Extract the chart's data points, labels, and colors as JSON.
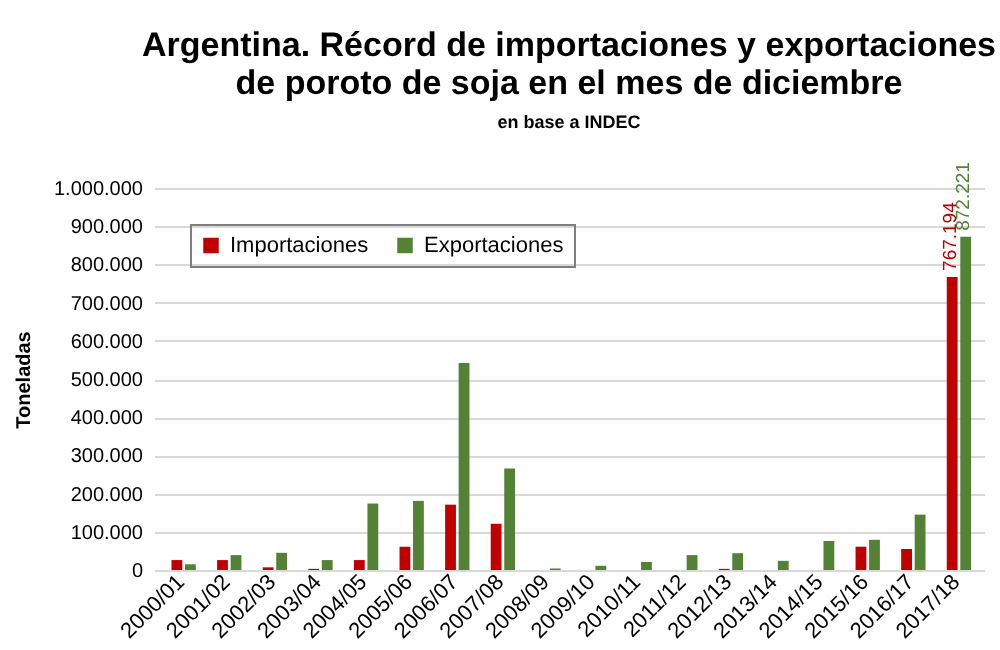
{
  "chart_data": {
    "type": "bar",
    "title": "Argentina. Récord de importaciones y exportaciones\nde poroto de soja en el mes de diciembre",
    "subtitle": "en base a INDEC",
    "ylabel": "Toneladas",
    "categories": [
      "2000/01",
      "2001/02",
      "2002/03",
      "2003/04",
      "2004/05",
      "2005/06",
      "2006/07",
      "2007/08",
      "2008/09",
      "2009/10",
      "2010/11",
      "2011/12",
      "2012/13",
      "2013/14",
      "2014/15",
      "2015/16",
      "2016/17",
      "2017/18"
    ],
    "series": [
      {
        "name": "Importaciones",
        "color": "#c00000",
        "values": [
          26000,
          26000,
          7000,
          3000,
          26000,
          61000,
          171000,
          121000,
          null,
          null,
          null,
          null,
          3000,
          null,
          null,
          61000,
          55000,
          767194
        ],
        "value_labels": [
          null,
          null,
          null,
          null,
          null,
          null,
          null,
          null,
          null,
          null,
          null,
          null,
          null,
          null,
          null,
          null,
          null,
          "767.194"
        ]
      },
      {
        "name": "Exportaciones",
        "color": "#548235",
        "values": [
          15000,
          39000,
          45000,
          26000,
          174000,
          181000,
          542000,
          266000,
          4000,
          11000,
          21000,
          39000,
          44000,
          24000,
          76000,
          79000,
          145000,
          872221
        ],
        "value_labels": [
          null,
          null,
          null,
          null,
          null,
          null,
          null,
          null,
          null,
          null,
          null,
          null,
          null,
          null,
          null,
          null,
          null,
          "872.221"
        ]
      }
    ],
    "ylim": [
      0,
      1000000
    ],
    "yticks": [
      {
        "value": 0,
        "label": "0"
      },
      {
        "value": 100000,
        "label": "100.000"
      },
      {
        "value": 200000,
        "label": "200.000"
      },
      {
        "value": 300000,
        "label": "300.000"
      },
      {
        "value": 400000,
        "label": "400.000"
      },
      {
        "value": 500000,
        "label": "500.000"
      },
      {
        "value": 600000,
        "label": "600.000"
      },
      {
        "value": 700000,
        "label": "700.000"
      },
      {
        "value": 800000,
        "label": "800.000"
      },
      {
        "value": 900000,
        "label": "900.000"
      },
      {
        "value": 1000000,
        "label": "1.000.000"
      }
    ],
    "grid": "y",
    "legend": "top left"
  }
}
